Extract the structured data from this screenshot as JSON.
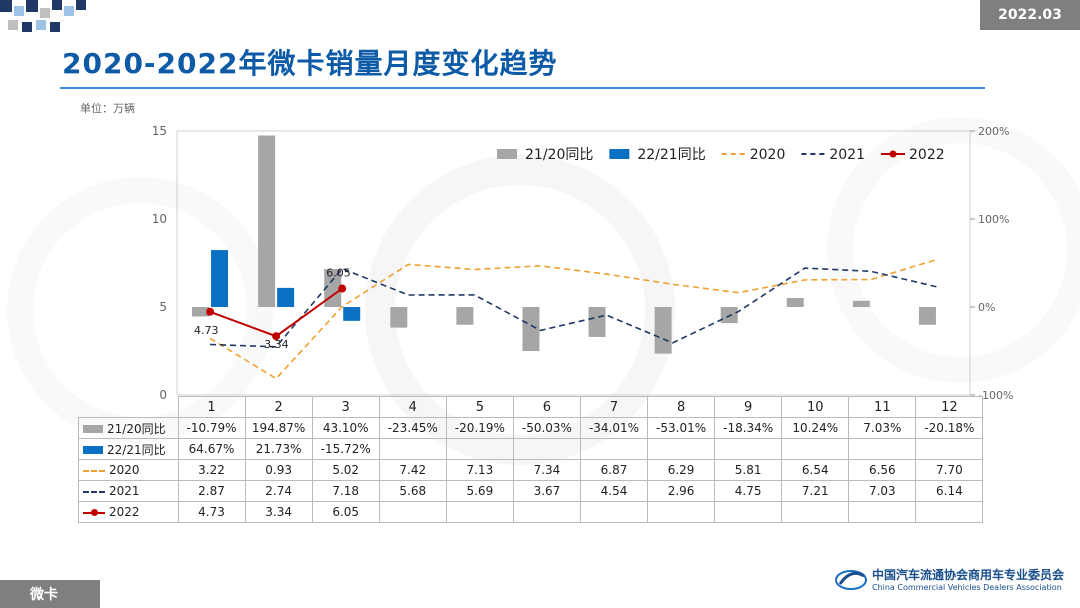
{
  "header": {
    "date_badge": "2022.03"
  },
  "title": "2020-2022年微卡销量月度变化趋势",
  "unit": "单位：万辆",
  "footer": {
    "tag": "微卡"
  },
  "org": {
    "name_cn": "中国汽车流通协会商用车专业委员会",
    "name_en": "China Commercial Vehicles Dealers Association"
  },
  "colors": {
    "accent": "#0d5aa7",
    "gray_bar": "#a6a6a6",
    "blue_bar": "#0a70c4",
    "line_2020": "#f0a030",
    "line_2021": "#1f3864",
    "line_2022": "#c00000"
  },
  "chart_data": {
    "type": "bar",
    "categories": [
      "1",
      "2",
      "3",
      "4",
      "5",
      "6",
      "7",
      "8",
      "9",
      "10",
      "11",
      "12"
    ],
    "y_left": {
      "ylim": [
        0,
        15
      ],
      "ticks": [
        "0",
        "5",
        "10",
        "15"
      ]
    },
    "y_right": {
      "ylim": [
        -100,
        200
      ],
      "ticks": [
        "-100%",
        "0%",
        "100%",
        "200%"
      ]
    },
    "series": [
      {
        "name": "21/20同比",
        "kind": "bar",
        "axis": "right",
        "color": "#a6a6a6",
        "values": [
          -10.79,
          194.87,
          43.1,
          -23.45,
          -20.19,
          -50.03,
          -34.01,
          -53.01,
          -18.34,
          10.24,
          7.03,
          -20.18
        ],
        "labels": [
          "-10.79%",
          "194.87%",
          "43.10%",
          "-23.45%",
          "-20.19%",
          "-50.03%",
          "-34.01%",
          "-53.01%",
          "-18.34%",
          "10.24%",
          "7.03%",
          "-20.18%"
        ]
      },
      {
        "name": "22/21同比",
        "kind": "bar",
        "axis": "right",
        "color": "#0a70c4",
        "values": [
          64.67,
          21.73,
          -15.72,
          null,
          null,
          null,
          null,
          null,
          null,
          null,
          null,
          null
        ],
        "labels": [
          "64.67%",
          "21.73%",
          "-15.72%",
          "",
          "",
          "",
          "",
          "",
          "",
          "",
          "",
          ""
        ]
      },
      {
        "name": "2020",
        "kind": "line",
        "style": "dashed",
        "axis": "left",
        "color": "#f0a030",
        "values": [
          3.22,
          0.93,
          5.02,
          7.42,
          7.13,
          7.34,
          6.87,
          6.29,
          5.81,
          6.54,
          6.56,
          7.7
        ],
        "labels": [
          "3.22",
          "0.93",
          "5.02",
          "7.42",
          "7.13",
          "7.34",
          "6.87",
          "6.29",
          "5.81",
          "6.54",
          "6.56",
          "7.70"
        ]
      },
      {
        "name": "2021",
        "kind": "line",
        "style": "dashed",
        "axis": "left",
        "color": "#1f3864",
        "values": [
          2.87,
          2.74,
          7.18,
          5.68,
          5.69,
          3.67,
          4.54,
          2.96,
          4.75,
          7.21,
          7.03,
          6.14
        ],
        "labels": [
          "2.87",
          "2.74",
          "7.18",
          "5.68",
          "5.69",
          "3.67",
          "4.54",
          "2.96",
          "4.75",
          "7.21",
          "7.03",
          "6.14"
        ]
      },
      {
        "name": "2022",
        "kind": "line",
        "style": "solid-marker",
        "axis": "left",
        "color": "#c00000",
        "values": [
          4.73,
          3.34,
          6.05,
          null,
          null,
          null,
          null,
          null,
          null,
          null,
          null,
          null
        ],
        "labels": [
          "4.73",
          "3.34",
          "6.05",
          "",
          "",
          "",
          "",
          "",
          "",
          "",
          "",
          ""
        ]
      }
    ],
    "data_labels": [
      "4.73",
      "3.34",
      "6.05"
    ],
    "legend_position": "top-right",
    "grid": false
  }
}
